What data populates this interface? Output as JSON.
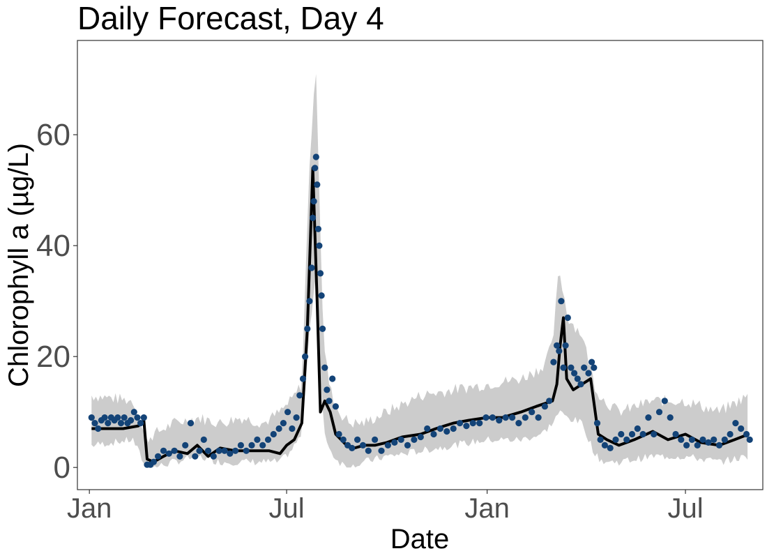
{
  "chart_data": {
    "type": "line",
    "title": "Daily Forecast, Day 4",
    "xlabel": "Date",
    "ylabel": "Chlorophyll a (µg/L)",
    "x_ticks": [
      "Jan",
      "Jul",
      "Jan",
      "Jul"
    ],
    "x_tick_dates": [
      "2019-01-01",
      "2019-07-01",
      "2020-01-01",
      "2020-07-01"
    ],
    "y_ticks": [
      0,
      20,
      40,
      60
    ],
    "xlim": [
      "2018-12-21",
      "2020-09-10"
    ],
    "ylim": [
      -4,
      77
    ],
    "grid": false,
    "legend": "none",
    "colors": {
      "band": "#cccccc",
      "forecast": "#000000",
      "observed": "#134377"
    },
    "series": [
      {
        "role": "interval",
        "style": "gray band",
        "x": [
          "2019-01-03",
          "2019-02-10",
          "2019-02-22",
          "2019-03-01",
          "2019-03-20",
          "2019-04-10",
          "2019-05-01",
          "2019-05-20",
          "2019-06-10",
          "2019-06-25",
          "2019-07-05",
          "2019-07-15",
          "2019-07-22",
          "2019-07-28",
          "2019-07-31",
          "2019-08-04",
          "2019-08-10",
          "2019-08-18",
          "2019-08-28",
          "2019-09-10",
          "2019-10-01",
          "2019-11-01",
          "2019-12-01",
          "2020-01-01",
          "2020-02-01",
          "2020-02-20",
          "2020-03-01",
          "2020-03-07",
          "2020-03-15",
          "2020-03-28",
          "2020-04-10",
          "2020-04-18",
          "2020-05-01",
          "2020-06-01",
          "2020-07-01",
          "2020-08-01",
          "2020-08-28"
        ],
        "lower": [
          4,
          5,
          0,
          0,
          1,
          2,
          1,
          1,
          1,
          1,
          3,
          6,
          25,
          35,
          20,
          7,
          3,
          1,
          0,
          1,
          2,
          3,
          4,
          5,
          5,
          6,
          8,
          10,
          9,
          8,
          2,
          1,
          1,
          2,
          2,
          1,
          2
        ],
        "upper": [
          13,
          12,
          5,
          6,
          8,
          9,
          8,
          9,
          8,
          10,
          12,
          15,
          55,
          72,
          50,
          22,
          14,
          10,
          8,
          8,
          10,
          13,
          14,
          15,
          16,
          18,
          22,
          36,
          27,
          24,
          14,
          12,
          10,
          12,
          12,
          10,
          13
        ]
      },
      {
        "role": "forecast",
        "style": "black line",
        "x": [
          "2019-01-03",
          "2019-01-15",
          "2019-02-01",
          "2019-02-15",
          "2019-02-20",
          "2019-02-23",
          "2019-03-01",
          "2019-03-10",
          "2019-03-20",
          "2019-04-01",
          "2019-04-10",
          "2019-04-20",
          "2019-05-01",
          "2019-05-15",
          "2019-06-01",
          "2019-06-15",
          "2019-06-25",
          "2019-07-01",
          "2019-07-08",
          "2019-07-15",
          "2019-07-20",
          "2019-07-25",
          "2019-07-29",
          "2019-08-01",
          "2019-08-05",
          "2019-08-10",
          "2019-08-15",
          "2019-08-20",
          "2019-08-25",
          "2019-09-01",
          "2019-09-10",
          "2019-09-20",
          "2019-10-01",
          "2019-10-15",
          "2019-11-01",
          "2019-11-15",
          "2019-12-01",
          "2019-12-15",
          "2020-01-01",
          "2020-01-15",
          "2020-02-01",
          "2020-02-15",
          "2020-03-01",
          "2020-03-05",
          "2020-03-08",
          "2020-03-11",
          "2020-03-14",
          "2020-03-20",
          "2020-03-28",
          "2020-04-05",
          "2020-04-12",
          "2020-04-20",
          "2020-05-01",
          "2020-05-15",
          "2020-06-01",
          "2020-06-15",
          "2020-07-01",
          "2020-07-15",
          "2020-08-01",
          "2020-08-15",
          "2020-08-28"
        ],
        "y": [
          7,
          7,
          7,
          7.5,
          8.5,
          1.5,
          1,
          2,
          3,
          2.5,
          4,
          2,
          3.5,
          3,
          3,
          3,
          2.5,
          4,
          5,
          8,
          25,
          54,
          30,
          10,
          12,
          10,
          6,
          5,
          4,
          3.5,
          4,
          4,
          4.5,
          5.5,
          6,
          7,
          8,
          8.5,
          9,
          9,
          10,
          11,
          12,
          15,
          22,
          27,
          16,
          14,
          15,
          16,
          6,
          5,
          4,
          5,
          6.5,
          5,
          6,
          4.5,
          4,
          5,
          6
        ]
      },
      {
        "role": "observed",
        "style": "blue points",
        "x": [
          "2019-01-03",
          "2019-01-06",
          "2019-01-09",
          "2019-01-12",
          "2019-01-15",
          "2019-01-18",
          "2019-01-21",
          "2019-01-24",
          "2019-01-27",
          "2019-01-30",
          "2019-02-02",
          "2019-02-05",
          "2019-02-08",
          "2019-02-11",
          "2019-02-14",
          "2019-02-17",
          "2019-02-20",
          "2019-02-23",
          "2019-02-26",
          "2019-03-01",
          "2019-03-05",
          "2019-03-10",
          "2019-03-15",
          "2019-03-20",
          "2019-03-25",
          "2019-03-30",
          "2019-04-04",
          "2019-04-08",
          "2019-04-12",
          "2019-04-16",
          "2019-04-20",
          "2019-04-25",
          "2019-04-30",
          "2019-05-05",
          "2019-05-10",
          "2019-05-15",
          "2019-05-20",
          "2019-05-25",
          "2019-05-30",
          "2019-06-04",
          "2019-06-09",
          "2019-06-14",
          "2019-06-19",
          "2019-06-24",
          "2019-06-28",
          "2019-07-02",
          "2019-07-06",
          "2019-07-10",
          "2019-07-13",
          "2019-07-16",
          "2019-07-18",
          "2019-07-20",
          "2019-07-22",
          "2019-07-24",
          "2019-07-25",
          "2019-07-26",
          "2019-07-27",
          "2019-07-28",
          "2019-07-29",
          "2019-07-30",
          "2019-07-31",
          "2019-08-01",
          "2019-08-02",
          "2019-08-03",
          "2019-08-05",
          "2019-08-07",
          "2019-08-09",
          "2019-08-12",
          "2019-08-15",
          "2019-08-18",
          "2019-08-22",
          "2019-08-26",
          "2019-08-30",
          "2019-09-04",
          "2019-09-09",
          "2019-09-14",
          "2019-09-20",
          "2019-09-26",
          "2019-10-02",
          "2019-10-08",
          "2019-10-14",
          "2019-10-20",
          "2019-10-26",
          "2019-11-01",
          "2019-11-07",
          "2019-11-13",
          "2019-11-19",
          "2019-11-25",
          "2019-12-01",
          "2019-12-07",
          "2019-12-13",
          "2019-12-19",
          "2019-12-25",
          "2019-12-31",
          "2020-01-06",
          "2020-01-12",
          "2020-01-18",
          "2020-01-24",
          "2020-01-30",
          "2020-02-05",
          "2020-02-11",
          "2020-02-17",
          "2020-02-23",
          "2020-02-27",
          "2020-03-02",
          "2020-03-05",
          "2020-03-07",
          "2020-03-09",
          "2020-03-11",
          "2020-03-13",
          "2020-03-15",
          "2020-03-18",
          "2020-03-21",
          "2020-03-24",
          "2020-03-27",
          "2020-03-30",
          "2020-04-03",
          "2020-04-06",
          "2020-04-08",
          "2020-04-11",
          "2020-04-14",
          "2020-04-18",
          "2020-04-23",
          "2020-04-28",
          "2020-05-03",
          "2020-05-08",
          "2020-05-13",
          "2020-05-18",
          "2020-05-23",
          "2020-05-28",
          "2020-06-02",
          "2020-06-07",
          "2020-06-12",
          "2020-06-17",
          "2020-06-22",
          "2020-06-27",
          "2020-07-02",
          "2020-07-07",
          "2020-07-12",
          "2020-07-17",
          "2020-07-22",
          "2020-07-27",
          "2020-08-01",
          "2020-08-06",
          "2020-08-11",
          "2020-08-16",
          "2020-08-21",
          "2020-08-26",
          "2020-08-29"
        ],
        "y": [
          9,
          8,
          7,
          8.5,
          9,
          8,
          9,
          8.5,
          9,
          8,
          9,
          8,
          8.5,
          10,
          9,
          8,
          9,
          0.5,
          0.5,
          1,
          2,
          3,
          2.5,
          3,
          2,
          4,
          8,
          2,
          3,
          5,
          3,
          2,
          3,
          3,
          2.5,
          3,
          4,
          3,
          4,
          5,
          4,
          5,
          6,
          7,
          8,
          10,
          7,
          9,
          13,
          16,
          20,
          25,
          30,
          36,
          45,
          48,
          54,
          56,
          51,
          43,
          40,
          35,
          31,
          25,
          18,
          14,
          12,
          16,
          11,
          6,
          5,
          4,
          3.5,
          5,
          4,
          3,
          5,
          3,
          4,
          4.5,
          5,
          4,
          5,
          5.5,
          7,
          6,
          7,
          6.5,
          7,
          8,
          7.5,
          8,
          8,
          9,
          9,
          8.5,
          9,
          9,
          8,
          9,
          10,
          9,
          11,
          12,
          19,
          22,
          21,
          30,
          18,
          22,
          27,
          18,
          17,
          16,
          15,
          18,
          17,
          19,
          18,
          8,
          5,
          4,
          3.5,
          5,
          6,
          5,
          6,
          7,
          6,
          9,
          6,
          10,
          12,
          9,
          6,
          5,
          4,
          5,
          4,
          5,
          4.5,
          5,
          4,
          5,
          6,
          8,
          7,
          6,
          5
        ]
      }
    ]
  }
}
